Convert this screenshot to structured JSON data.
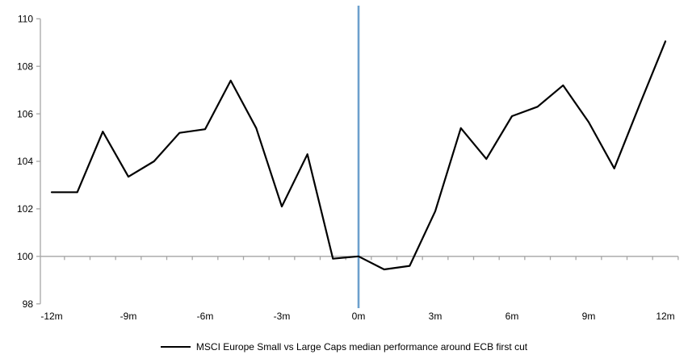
{
  "chart_data": {
    "type": "line",
    "title": "",
    "xlabel": "",
    "ylabel": "",
    "categories": [
      "-12m",
      "-11m",
      "-10m",
      "-9m",
      "-8m",
      "-7m",
      "-6m",
      "-5m",
      "-4m",
      "-3m",
      "-2m",
      "-1m",
      "0m",
      "1m",
      "2m",
      "3m",
      "4m",
      "5m",
      "6m",
      "7m",
      "8m",
      "9m",
      "10m",
      "11m",
      "12m"
    ],
    "series": [
      {
        "name": "MSCI Europe Small vs Large Caps median performance around ECB first cut",
        "values": [
          102.7,
          102.7,
          105.25,
          103.35,
          104.0,
          105.2,
          105.35,
          107.4,
          105.4,
          102.1,
          104.3,
          99.9,
          100.0,
          99.45,
          99.6,
          101.9,
          105.4,
          104.1,
          105.9,
          106.3,
          107.2,
          105.65,
          103.7,
          106.4,
          109.05
        ]
      }
    ],
    "x_tick_label_every": 3,
    "x_tick_labels_shown": [
      "-12m",
      "-9m",
      "-6m",
      "-3m",
      "0m",
      "3m",
      "6m",
      "9m",
      "12m"
    ],
    "y_ticks": [
      98,
      100,
      102,
      104,
      106,
      108,
      110
    ],
    "ylim": [
      98,
      110
    ],
    "axis_crosses_at": 100,
    "event_line_category": "0m",
    "grid": "off",
    "legend_position": "bottom-center",
    "colors": {
      "series_line": "#000000",
      "event_line": "#6da0cd",
      "axis": "#a6a6a6",
      "text": "#000000"
    }
  }
}
